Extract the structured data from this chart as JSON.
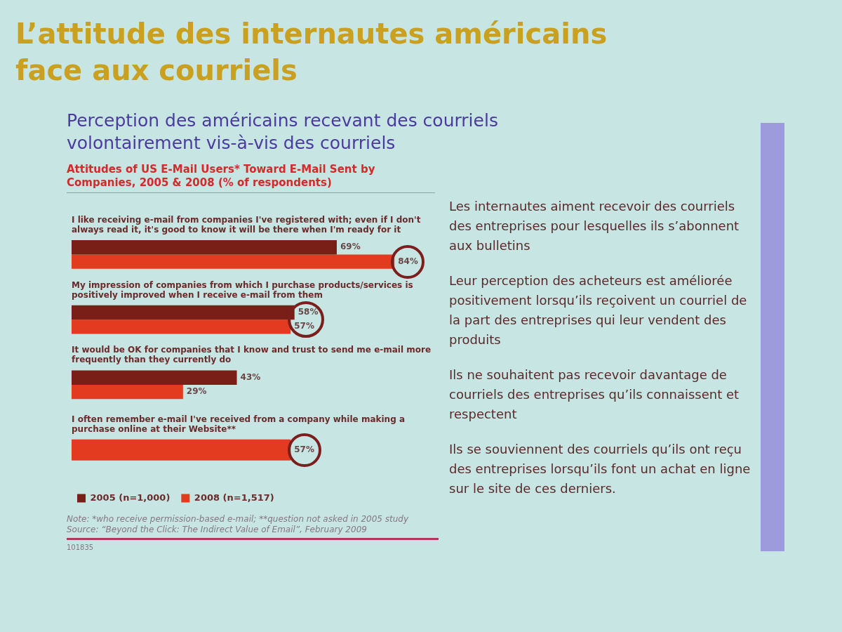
{
  "chart_data": {
    "type": "bar",
    "orientation": "horizontal",
    "title": "L’attitude des internautes américains face aux courriels",
    "subtitle": "Perception des américains recevant des courriels volontairement vis-à-vis des courriels",
    "categories": [
      "I like receiving e-mail from companies I've registered with; even if I don't always read it, it's good to know it will be there when I'm ready for it",
      "My impression of companies from which I purchase products/services is positively improved when I receive e-mail from them",
      "It would be OK for companies that I know and trust to send me e-mail more frequently than they currently do",
      "I often remember e-mail I've received from a company while making a purchase online at their Website**"
    ],
    "series": [
      {
        "name": "2005 (n=1,000)",
        "color": "#7a1f17",
        "values": [
          69,
          58,
          43,
          null
        ],
        "value_labels": [
          "69%",
          "58%",
          "43%",
          null
        ]
      },
      {
        "name": "2008 (n=1,517)",
        "color": "#e23b1f",
        "values": [
          84,
          57,
          29,
          57
        ],
        "value_labels": [
          "84%",
          "57%",
          "29%",
          "57%"
        ]
      }
    ],
    "legend": "bottom left",
    "tick_labels": "y",
    "annotations": [
      "Attitudes of US E-Mail Users* Toward E-Mail Sent by Companies, 2005 & 2008 (% of respondents)",
      "Note: *who receive permission-based e-mail; **question not asked in 2005 study",
      "Source: “Beyond the Click: The Indirect Value of Email”, February 2009",
      "101835",
      "Les internautes aiment recevoir des courriels des entreprises pour lesquelles ils s’abonnent aux bulletins",
      "Leur perception des acheteurs est améliorée positivement lorsqu’ils reçoivent un courriel de la part des entreprises qui leur vendent des produits",
      "Ils ne souhaitent pas recevoir davantage de courriels des entreprises qu’ils connaissent et respectent",
      "Ils se souviennent des courriels qu’ils ont reçu des entreprises lorsqu’ils font un achat en ligne sur le site de ces derniers."
    ]
  }
}
